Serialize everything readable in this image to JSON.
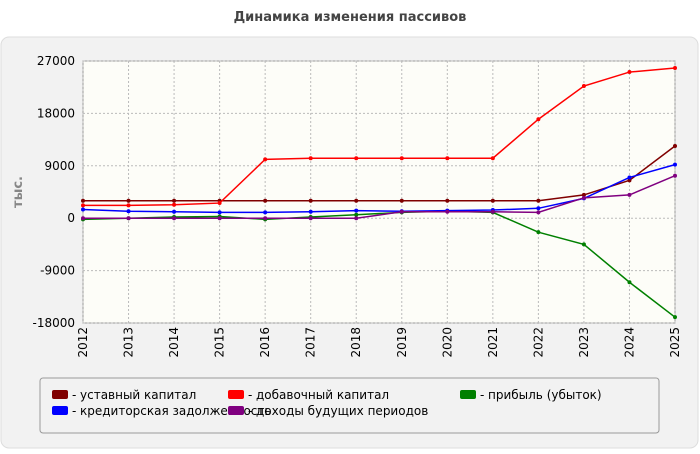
{
  "chart_data": {
    "type": "line",
    "title": "Динамика изменения пассивов",
    "y_label": "тыс.",
    "categories": [
      "2012",
      "2013",
      "2014",
      "2015",
      "2016",
      "2017",
      "2018",
      "2019",
      "2020",
      "2021",
      "2022",
      "2023",
      "2024",
      "2025"
    ],
    "ylim": [
      -18000,
      27000
    ],
    "yticks": [
      -18000,
      -9000,
      0,
      9000,
      18000,
      27000
    ],
    "grid": true,
    "series": [
      {
        "name": "уставный капитал",
        "color": "#800000",
        "values": [
          3000,
          3000,
          3000,
          3000,
          3000,
          3000,
          3000,
          3000,
          3000,
          3000,
          3000,
          4000,
          6500,
          12400
        ]
      },
      {
        "name": "добавочный капитал",
        "color": "#ff0000",
        "values": [
          2200,
          2200,
          2300,
          2600,
          10100,
          10300,
          10300,
          10300,
          10300,
          10300,
          17000,
          22700,
          25100,
          25800
        ]
      },
      {
        "name": "прибыль (убыток)",
        "color": "#008000",
        "values": [
          -200,
          0,
          200,
          300,
          -200,
          200,
          600,
          1000,
          1200,
          1000,
          -2400,
          -4500,
          -11000,
          -17000
        ]
      },
      {
        "name": "кредиторская задолженность",
        "color": "#0000ff",
        "values": [
          1500,
          1200,
          1100,
          1000,
          1000,
          1100,
          1300,
          1200,
          1300,
          1400,
          1700,
          3400,
          7000,
          9200
        ]
      },
      {
        "name": "доходы будущих периодов",
        "color": "#800080",
        "values": [
          0,
          0,
          0,
          0,
          0,
          0,
          0,
          1100,
          1100,
          1100,
          1000,
          3500,
          4000,
          7300
        ]
      }
    ]
  }
}
